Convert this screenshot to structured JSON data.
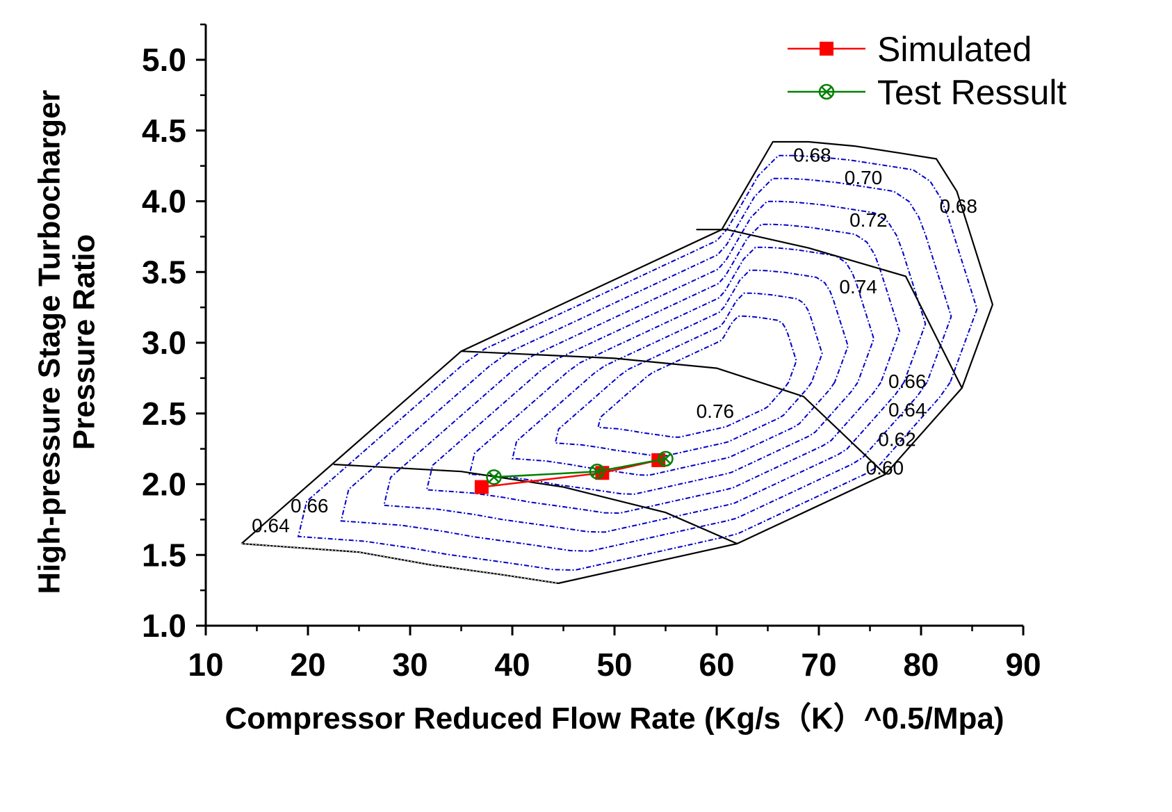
{
  "chart_data": {
    "type": "line",
    "title": "",
    "xlabel": "Compressor Reduced Flow Rate   (Kg/s（K）^0.5/Mpa)",
    "ylabel_lines": [
      "High-pressure Stage Turbocharger",
      "Pressure Ratio"
    ],
    "xlim": [
      10,
      90
    ],
    "ylim": [
      1.0,
      5.25
    ],
    "xticks": [
      "10",
      "20",
      "30",
      "40",
      "50",
      "60",
      "70",
      "80",
      "90"
    ],
    "yticks": [
      "1.0",
      "1.5",
      "2.0",
      "2.5",
      "3.0",
      "3.5",
      "4.0",
      "4.5",
      "5.0"
    ],
    "legend_position": "top-right",
    "series": [
      {
        "name": "Simulated",
        "color": "#ff0000",
        "marker": "square",
        "x": [
          37.0,
          48.8,
          54.3
        ],
        "y": [
          1.98,
          2.08,
          2.17
        ]
      },
      {
        "name": "Test Ressult",
        "color": "#008000",
        "marker": "circle-x",
        "x": [
          38.2,
          48.3,
          55.0
        ],
        "y": [
          2.05,
          2.09,
          2.18
        ]
      }
    ],
    "map_boundary": {
      "color": "#000000",
      "x": [
        13.5,
        35.0,
        60.5,
        65.5,
        69.0,
        73.5,
        78.0,
        81.5,
        83.5,
        87.0,
        84.0,
        76.5,
        62.0,
        44.5,
        39.0,
        32.0,
        25.0,
        13.5
      ],
      "y": [
        1.58,
        2.94,
        3.8,
        4.42,
        4.42,
        4.39,
        4.34,
        4.3,
        4.07,
        3.27,
        2.68,
        2.07,
        1.58,
        1.3,
        1.36,
        1.43,
        1.52,
        1.58
      ]
    },
    "speed_lines": [
      {
        "x": [
          22.5,
          35.0,
          45.0,
          55.0,
          62.0
        ],
        "y": [
          2.14,
          2.09,
          1.98,
          1.8,
          1.58
        ]
      },
      {
        "x": [
          35.0,
          50.0,
          60.0,
          68.5,
          76.5
        ],
        "y": [
          2.94,
          2.89,
          2.82,
          2.62,
          2.07
        ]
      },
      {
        "x": [
          58.0,
          61.0,
          69.0,
          78.5,
          84.0
        ],
        "y": [
          3.8,
          3.8,
          3.67,
          3.47,
          2.68
        ]
      }
    ],
    "efficiency_contours": {
      "color": "#0000cc",
      "labels": [
        {
          "text": "0.76",
          "x": 58.0,
          "y": 2.47
        },
        {
          "text": "0.74",
          "x": 72.0,
          "y": 3.35
        },
        {
          "text": "0.72",
          "x": 73.0,
          "y": 3.82
        },
        {
          "text": "0.70",
          "x": 72.5,
          "y": 4.12
        },
        {
          "text": "0.68",
          "x": 67.5,
          "y": 4.28
        },
        {
          "text": "0.68",
          "x": 81.8,
          "y": 3.92
        },
        {
          "text": "0.66",
          "x": 76.8,
          "y": 2.68
        },
        {
          "text": "0.64",
          "x": 76.8,
          "y": 2.48
        },
        {
          "text": "0.62",
          "x": 75.8,
          "y": 2.27
        },
        {
          "text": "0.60",
          "x": 74.6,
          "y": 2.07
        },
        {
          "text": "0.66",
          "x": 18.3,
          "y": 1.8
        },
        {
          "text": "0.64",
          "x": 14.5,
          "y": 1.66
        }
      ]
    }
  }
}
